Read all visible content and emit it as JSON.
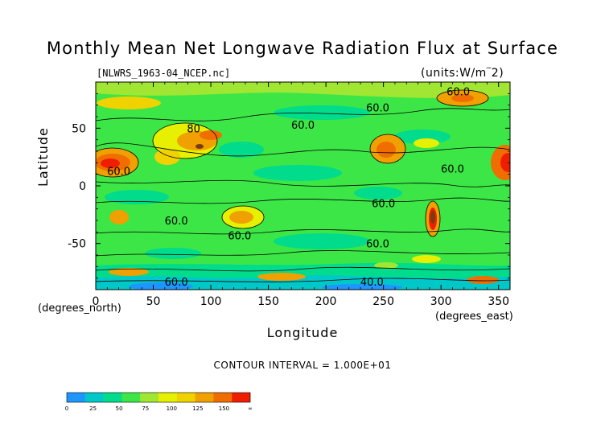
{
  "title": "Monthly Mean Net Longwave Radiation Flux at Surface",
  "file_name": "[NLWRS_1963-04_NCEP.nc]",
  "units": "(units:W/m^2)",
  "axes": {
    "xlabel": "Longitude",
    "ylabel": "Latitude",
    "x_unit": "(degrees_east)",
    "y_unit": "(degrees_north)",
    "x_ticks": [
      "0",
      "50",
      "100",
      "150",
      "200",
      "250",
      "300",
      "350"
    ],
    "y_ticks": [
      "50",
      "0",
      "-50"
    ],
    "x_range": [
      0,
      360
    ],
    "y_range": [
      -90,
      90
    ]
  },
  "contour_interval": "CONTOUR INTERVAL = 1.000E+01",
  "contour_labels": [
    {
      "text": "60.0",
      "lon": 315,
      "lat": 82
    },
    {
      "text": "60.0",
      "lon": 245,
      "lat": 68
    },
    {
      "text": "60.0",
      "lon": 180,
      "lat": 53
    },
    {
      "text": "80",
      "lon": 85,
      "lat": 50
    },
    {
      "text": "60.0",
      "lon": 20,
      "lat": 13
    },
    {
      "text": "60.0",
      "lon": 310,
      "lat": 15
    },
    {
      "text": "60.0",
      "lon": 250,
      "lat": -15
    },
    {
      "text": "60.0",
      "lon": 70,
      "lat": -30
    },
    {
      "text": "60.0",
      "lon": 125,
      "lat": -43
    },
    {
      "text": "60.0",
      "lon": 245,
      "lat": -50
    },
    {
      "text": "60.0",
      "lon": 70,
      "lat": -83
    },
    {
      "text": "40.0",
      "lon": 240,
      "lat": -83
    }
  ],
  "colorbar": {
    "colors": [
      "#1e96ff",
      "#00c8c8",
      "#00dc8c",
      "#3ce646",
      "#a0e632",
      "#e6f000",
      "#f0d200",
      "#f0a000",
      "#f06e00",
      "#f01e00"
    ],
    "labels": [
      "0",
      "25",
      "50",
      "75",
      "100",
      "125",
      "150",
      "∞"
    ]
  },
  "legend_level_colors": {
    "very_low": "#1e96ff",
    "low": "#00c8c8",
    "background": "#3ce646",
    "moderate": "#e6f000",
    "high": "#f0a000",
    "very_high": "#f01e00",
    "extreme": "#783c14"
  }
}
